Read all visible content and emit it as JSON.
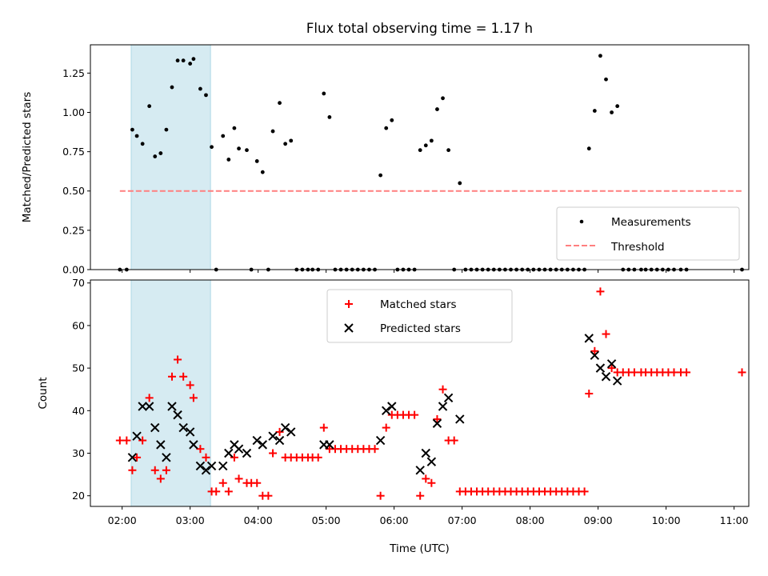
{
  "chart_data": [
    {
      "type": "scatter",
      "title": "Flux total observing time = 1.17 h",
      "xlabel": "",
      "ylabel": "Matched/Predicted stars",
      "xlim": [
        "01:32",
        "11:13"
      ],
      "ylim": [
        0,
        1.43
      ],
      "yticks": [
        "0.00",
        "0.25",
        "0.50",
        "0.75",
        "1.00",
        "1.25"
      ],
      "highlight_span": {
        "from": "02:08",
        "to": "03:18",
        "color": "#add8e6"
      },
      "legend_position": "lower right",
      "series": [
        {
          "name": "Measurements",
          "marker": "dot",
          "color": "#000000",
          "points": [
            [
              "01:58",
              0
            ],
            [
              "02:04",
              0
            ],
            [
              "02:09",
              0.89
            ],
            [
              "02:13",
              0.85
            ],
            [
              "02:18",
              0.8
            ],
            [
              "02:24",
              1.04
            ],
            [
              "02:29",
              0.72
            ],
            [
              "02:34",
              0.74
            ],
            [
              "02:39",
              0.89
            ],
            [
              "02:44",
              1.16
            ],
            [
              "02:49",
              1.33
            ],
            [
              "02:54",
              1.33
            ],
            [
              "03:00",
              1.31
            ],
            [
              "03:03",
              1.34
            ],
            [
              "03:09",
              1.15
            ],
            [
              "03:14",
              1.11
            ],
            [
              "03:19",
              0.78
            ],
            [
              "03:23",
              0
            ],
            [
              "03:29",
              0.85
            ],
            [
              "03:34",
              0.7
            ],
            [
              "03:39",
              0.9
            ],
            [
              "03:43",
              0.77
            ],
            [
              "03:50",
              0.76
            ],
            [
              "03:54",
              0
            ],
            [
              "03:59",
              0.69
            ],
            [
              "04:04",
              0.62
            ],
            [
              "04:09",
              0
            ],
            [
              "04:13",
              0.88
            ],
            [
              "04:19",
              1.06
            ],
            [
              "04:24",
              0.8
            ],
            [
              "04:29",
              0.82
            ],
            [
              "04:34",
              0
            ],
            [
              "04:39",
              0
            ],
            [
              "04:44",
              0
            ],
            [
              "04:48",
              0
            ],
            [
              "04:53",
              0
            ],
            [
              "04:58",
              1.12
            ],
            [
              "05:03",
              0.97
            ],
            [
              "05:08",
              0
            ],
            [
              "05:13",
              0
            ],
            [
              "05:18",
              0
            ],
            [
              "05:23",
              0
            ],
            [
              "05:28",
              0
            ],
            [
              "05:33",
              0
            ],
            [
              "05:38",
              0
            ],
            [
              "05:43",
              0
            ],
            [
              "05:48",
              0.6
            ],
            [
              "05:53",
              0.9
            ],
            [
              "05:58",
              0.95
            ],
            [
              "06:03",
              0
            ],
            [
              "06:08",
              0
            ],
            [
              "06:13",
              0
            ],
            [
              "06:18",
              0
            ],
            [
              "06:23",
              0.76
            ],
            [
              "06:28",
              0.79
            ],
            [
              "06:33",
              0.82
            ],
            [
              "06:38",
              1.02
            ],
            [
              "06:43",
              1.09
            ],
            [
              "06:48",
              0.76
            ],
            [
              "06:53",
              0
            ],
            [
              "06:58",
              0.55
            ],
            [
              "07:03",
              0
            ],
            [
              "07:08",
              0
            ],
            [
              "07:13",
              0
            ],
            [
              "07:18",
              0
            ],
            [
              "07:23",
              0
            ],
            [
              "07:28",
              0
            ],
            [
              "07:33",
              0
            ],
            [
              "07:38",
              0
            ],
            [
              "07:43",
              0
            ],
            [
              "07:48",
              0
            ],
            [
              "07:53",
              0
            ],
            [
              "07:58",
              0
            ],
            [
              "08:03",
              0
            ],
            [
              "08:08",
              0
            ],
            [
              "08:13",
              0
            ],
            [
              "08:18",
              0
            ],
            [
              "08:23",
              0
            ],
            [
              "08:28",
              0
            ],
            [
              "08:33",
              0
            ],
            [
              "08:38",
              0
            ],
            [
              "08:43",
              0
            ],
            [
              "08:48",
              0
            ],
            [
              "08:52",
              0.77
            ],
            [
              "08:57",
              1.01
            ],
            [
              "09:02",
              1.36
            ],
            [
              "09:07",
              1.21
            ],
            [
              "09:12",
              1.0
            ],
            [
              "09:17",
              1.04
            ],
            [
              "09:22",
              0
            ],
            [
              "09:27",
              0
            ],
            [
              "09:32",
              0
            ],
            [
              "09:38",
              0
            ],
            [
              "09:42",
              0
            ],
            [
              "09:47",
              0
            ],
            [
              "09:52",
              0
            ],
            [
              "09:57",
              0
            ],
            [
              "10:02",
              0
            ],
            [
              "10:07",
              0
            ],
            [
              "10:13",
              0
            ],
            [
              "10:18",
              0
            ],
            [
              "11:07",
              0
            ]
          ]
        },
        {
          "name": "Threshold",
          "marker": "dashed-line",
          "color": "#ff7f7f",
          "points": [
            [
              "01:58",
              0.5
            ],
            [
              "11:07",
              0.5
            ]
          ]
        }
      ]
    },
    {
      "type": "scatter",
      "title": "",
      "xlabel": "Time (UTC)",
      "ylabel": "Count",
      "xlim": [
        "01:32",
        "11:13"
      ],
      "ylim": [
        17.5,
        70.7
      ],
      "xticks": [
        "02:00",
        "03:00",
        "04:00",
        "05:00",
        "06:00",
        "07:00",
        "08:00",
        "09:00",
        "10:00",
        "11:00"
      ],
      "yticks": [
        "20",
        "30",
        "40",
        "50",
        "60",
        "70"
      ],
      "highlight_span": {
        "from": "02:08",
        "to": "03:18",
        "color": "#add8e6"
      },
      "legend_position": "upper center",
      "series": [
        {
          "name": "Matched stars",
          "marker": "plus",
          "color": "#ff0000",
          "points": [
            [
              "01:58",
              33
            ],
            [
              "02:04",
              33
            ],
            [
              "02:09",
              26
            ],
            [
              "02:13",
              29
            ],
            [
              "02:18",
              33
            ],
            [
              "02:24",
              43
            ],
            [
              "02:29",
              26
            ],
            [
              "02:34",
              24
            ],
            [
              "02:39",
              26
            ],
            [
              "02:44",
              48
            ],
            [
              "02:49",
              52
            ],
            [
              "02:54",
              48
            ],
            [
              "03:00",
              46
            ],
            [
              "03:03",
              43
            ],
            [
              "03:09",
              31
            ],
            [
              "03:14",
              29
            ],
            [
              "03:19",
              21
            ],
            [
              "03:23",
              21
            ],
            [
              "03:29",
              23
            ],
            [
              "03:34",
              21
            ],
            [
              "03:39",
              29
            ],
            [
              "03:43",
              24
            ],
            [
              "03:50",
              23
            ],
            [
              "03:54",
              23
            ],
            [
              "03:59",
              23
            ],
            [
              "04:04",
              20
            ],
            [
              "04:09",
              20
            ],
            [
              "04:13",
              30
            ],
            [
              "04:19",
              35
            ],
            [
              "04:24",
              29
            ],
            [
              "04:29",
              29
            ],
            [
              "04:34",
              29
            ],
            [
              "04:39",
              29
            ],
            [
              "04:44",
              29
            ],
            [
              "04:48",
              29
            ],
            [
              "04:53",
              29
            ],
            [
              "04:58",
              36
            ],
            [
              "05:03",
              31
            ],
            [
              "05:08",
              31
            ],
            [
              "05:13",
              31
            ],
            [
              "05:18",
              31
            ],
            [
              "05:23",
              31
            ],
            [
              "05:28",
              31
            ],
            [
              "05:33",
              31
            ],
            [
              "05:38",
              31
            ],
            [
              "05:43",
              31
            ],
            [
              "05:48",
              20
            ],
            [
              "05:53",
              36
            ],
            [
              "05:58",
              39
            ],
            [
              "06:03",
              39
            ],
            [
              "06:08",
              39
            ],
            [
              "06:13",
              39
            ],
            [
              "06:18",
              39
            ],
            [
              "06:23",
              20
            ],
            [
              "06:28",
              24
            ],
            [
              "06:33",
              23
            ],
            [
              "06:38",
              38
            ],
            [
              "06:43",
              45
            ],
            [
              "06:48",
              33
            ],
            [
              "06:53",
              33
            ],
            [
              "06:58",
              21
            ],
            [
              "07:03",
              21
            ],
            [
              "07:08",
              21
            ],
            [
              "07:13",
              21
            ],
            [
              "07:18",
              21
            ],
            [
              "07:23",
              21
            ],
            [
              "07:28",
              21
            ],
            [
              "07:33",
              21
            ],
            [
              "07:38",
              21
            ],
            [
              "07:43",
              21
            ],
            [
              "07:48",
              21
            ],
            [
              "07:53",
              21
            ],
            [
              "07:58",
              21
            ],
            [
              "08:03",
              21
            ],
            [
              "08:08",
              21
            ],
            [
              "08:13",
              21
            ],
            [
              "08:18",
              21
            ],
            [
              "08:23",
              21
            ],
            [
              "08:28",
              21
            ],
            [
              "08:33",
              21
            ],
            [
              "08:38",
              21
            ],
            [
              "08:43",
              21
            ],
            [
              "08:48",
              21
            ],
            [
              "08:52",
              44
            ],
            [
              "08:57",
              54
            ],
            [
              "09:02",
              68
            ],
            [
              "09:07",
              58
            ],
            [
              "09:12",
              50
            ],
            [
              "09:17",
              49
            ],
            [
              "09:22",
              49
            ],
            [
              "09:27",
              49
            ],
            [
              "09:32",
              49
            ],
            [
              "09:38",
              49
            ],
            [
              "09:42",
              49
            ],
            [
              "09:47",
              49
            ],
            [
              "09:52",
              49
            ],
            [
              "09:57",
              49
            ],
            [
              "10:02",
              49
            ],
            [
              "10:07",
              49
            ],
            [
              "10:13",
              49
            ],
            [
              "10:18",
              49
            ],
            [
              "11:07",
              49
            ]
          ]
        },
        {
          "name": "Predicted stars",
          "marker": "x",
          "color": "#000000",
          "points": [
            [
              "02:09",
              29
            ],
            [
              "02:13",
              34
            ],
            [
              "02:18",
              41
            ],
            [
              "02:24",
              41
            ],
            [
              "02:29",
              36
            ],
            [
              "02:34",
              32
            ],
            [
              "02:39",
              29
            ],
            [
              "02:44",
              41
            ],
            [
              "02:49",
              39
            ],
            [
              "02:54",
              36
            ],
            [
              "03:00",
              35
            ],
            [
              "03:03",
              32
            ],
            [
              "03:09",
              27
            ],
            [
              "03:14",
              26
            ],
            [
              "03:19",
              27
            ],
            [
              "03:29",
              27
            ],
            [
              "03:34",
              30
            ],
            [
              "03:39",
              32
            ],
            [
              "03:43",
              31
            ],
            [
              "03:50",
              30
            ],
            [
              "03:59",
              33
            ],
            [
              "04:04",
              32
            ],
            [
              "04:13",
              34
            ],
            [
              "04:19",
              33
            ],
            [
              "04:24",
              36
            ],
            [
              "04:29",
              35
            ],
            [
              "04:58",
              32
            ],
            [
              "05:03",
              32
            ],
            [
              "05:48",
              33
            ],
            [
              "05:53",
              40
            ],
            [
              "05:58",
              41
            ],
            [
              "06:23",
              26
            ],
            [
              "06:28",
              30
            ],
            [
              "06:33",
              28
            ],
            [
              "06:38",
              37
            ],
            [
              "06:43",
              41
            ],
            [
              "06:48",
              43
            ],
            [
              "06:58",
              38
            ],
            [
              "08:52",
              57
            ],
            [
              "08:57",
              53
            ],
            [
              "09:02",
              50
            ],
            [
              "09:07",
              48
            ],
            [
              "09:12",
              51
            ],
            [
              "09:17",
              47
            ]
          ]
        }
      ]
    }
  ]
}
